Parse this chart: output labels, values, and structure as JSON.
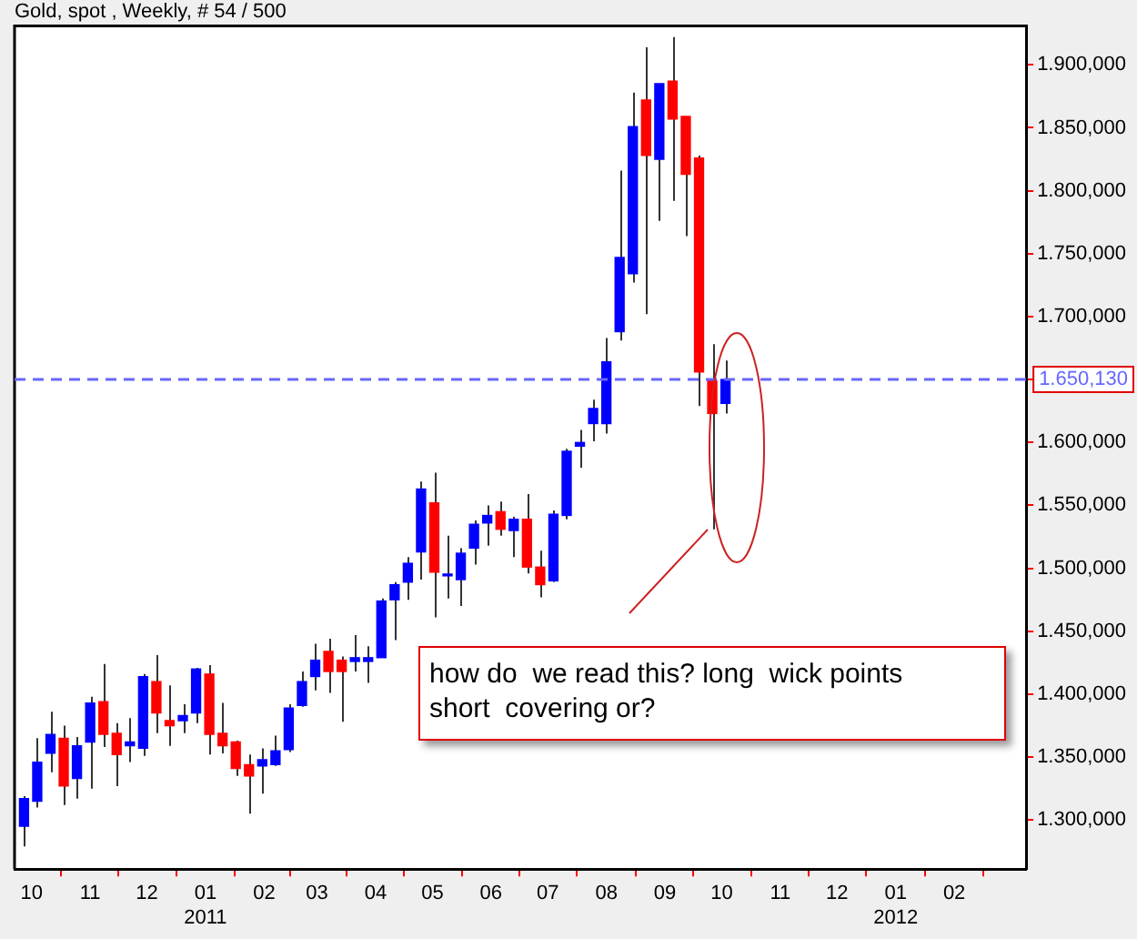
{
  "chart_data": {
    "type": "candlestick",
    "title": "Gold, spot , Weekly, # 54 / 500",
    "x": [
      "2010-09-27",
      "2010-10-04",
      "2010-10-11",
      "2010-10-18",
      "2010-10-25",
      "2010-11-01",
      "2010-11-08",
      "2010-11-15",
      "2010-11-22",
      "2010-11-29",
      "2010-12-06",
      "2010-12-13",
      "2010-12-20",
      "2010-12-27",
      "2011-01-03",
      "2011-01-10",
      "2011-01-17",
      "2011-01-24",
      "2011-01-31",
      "2011-02-07",
      "2011-02-14",
      "2011-02-21",
      "2011-02-28",
      "2011-03-07",
      "2011-03-14",
      "2011-03-21",
      "2011-03-28",
      "2011-04-04",
      "2011-04-11",
      "2011-04-18",
      "2011-04-25",
      "2011-05-02",
      "2011-05-09",
      "2011-05-16",
      "2011-05-23",
      "2011-05-30",
      "2011-06-06",
      "2011-06-13",
      "2011-06-20",
      "2011-06-27",
      "2011-07-04",
      "2011-07-11",
      "2011-07-18",
      "2011-07-25",
      "2011-08-01",
      "2011-08-08",
      "2011-08-15",
      "2011-08-22",
      "2011-08-29",
      "2011-09-05",
      "2011-09-12",
      "2011-09-19",
      "2011-09-26",
      "2011-10-03"
    ],
    "ohlc": [
      [
        1295,
        1319,
        1279,
        1317
      ],
      [
        1315,
        1365,
        1310,
        1346
      ],
      [
        1353,
        1386,
        1338,
        1368
      ],
      [
        1365,
        1375,
        1312,
        1327
      ],
      [
        1333,
        1366,
        1317,
        1359
      ],
      [
        1362,
        1398,
        1325,
        1393
      ],
      [
        1394,
        1424,
        1358,
        1368
      ],
      [
        1369,
        1377,
        1327,
        1352
      ],
      [
        1359,
        1381,
        1346,
        1362
      ],
      [
        1357,
        1416,
        1351,
        1414
      ],
      [
        1410,
        1431,
        1369,
        1385
      ],
      [
        1379,
        1407,
        1359,
        1375
      ],
      [
        1379,
        1392,
        1369,
        1383
      ],
      [
        1385,
        1421,
        1377,
        1420
      ],
      [
        1416,
        1423,
        1352,
        1368
      ],
      [
        1369,
        1393,
        1353,
        1359
      ],
      [
        1362,
        1363,
        1335,
        1341
      ],
      [
        1344,
        1352,
        1305,
        1335
      ],
      [
        1343,
        1357,
        1321,
        1348
      ],
      [
        1344,
        1367,
        1343,
        1355
      ],
      [
        1356,
        1392,
        1354,
        1389
      ],
      [
        1391,
        1418,
        1390,
        1410
      ],
      [
        1414,
        1440,
        1403,
        1427
      ],
      [
        1434,
        1444,
        1401,
        1418
      ],
      [
        1427,
        1430,
        1378,
        1418
      ],
      [
        1426,
        1447,
        1418,
        1429
      ],
      [
        1426,
        1438,
        1409,
        1429
      ],
      [
        1429,
        1476,
        1429,
        1474
      ],
      [
        1475,
        1489,
        1443,
        1487
      ],
      [
        1489,
        1509,
        1475,
        1504
      ],
      [
        1513,
        1569,
        1491,
        1563
      ],
      [
        1552,
        1576,
        1461,
        1497
      ],
      [
        1494,
        1526,
        1476,
        1495
      ],
      [
        1491,
        1516,
        1470,
        1512
      ],
      [
        1516,
        1538,
        1503,
        1535
      ],
      [
        1536,
        1550,
        1518,
        1542
      ],
      [
        1545,
        1553,
        1526,
        1531
      ],
      [
        1530,
        1541,
        1509,
        1539
      ],
      [
        1539,
        1559,
        1496,
        1501
      ],
      [
        1501,
        1514,
        1477,
        1487
      ],
      [
        1490,
        1546,
        1489,
        1543
      ],
      [
        1542,
        1595,
        1539,
        1593
      ],
      [
        1597,
        1610,
        1580,
        1600
      ],
      [
        1615,
        1634,
        1601,
        1627
      ],
      [
        1615,
        1683,
        1607,
        1664
      ],
      [
        1688,
        1816,
        1681,
        1747
      ],
      [
        1734,
        1878,
        1727,
        1851
      ],
      [
        1872,
        1914,
        1702,
        1828
      ],
      [
        1825,
        1885,
        1776,
        1885
      ],
      [
        1887,
        1922,
        1792,
        1857
      ],
      [
        1859,
        1859,
        1764,
        1813
      ],
      [
        1826,
        1828,
        1629,
        1656
      ],
      [
        1649,
        1678,
        1531,
        1623
      ],
      [
        1631,
        1665,
        1623,
        1650
      ]
    ],
    "colors": [
      "#0000ff",
      "#0000ff",
      "#0000ff",
      "#ff0000",
      "#0000ff",
      "#0000ff",
      "#ff0000",
      "#ff0000",
      "#0000ff",
      "#0000ff",
      "#ff0000",
      "#ff0000",
      "#0000ff",
      "#0000ff",
      "#ff0000",
      "#ff0000",
      "#ff0000",
      "#ff0000",
      "#0000ff",
      "#0000ff",
      "#0000ff",
      "#0000ff",
      "#0000ff",
      "#ff0000",
      "#ff0000",
      "#0000ff",
      "#0000ff",
      "#0000ff",
      "#0000ff",
      "#0000ff",
      "#0000ff",
      "#ff0000",
      "#0000ff",
      "#0000ff",
      "#0000ff",
      "#0000ff",
      "#ff0000",
      "#0000ff",
      "#ff0000",
      "#ff0000",
      "#0000ff",
      "#0000ff",
      "#0000ff",
      "#0000ff",
      "#0000ff",
      "#0000ff",
      "#0000ff",
      "#ff0000",
      "#0000ff",
      "#ff0000",
      "#ff0000",
      "#ff0000",
      "#ff0000",
      "#0000ff"
    ],
    "xlim": [
      "2010-09-22",
      "2012-03-10"
    ],
    "xticks": [
      {
        "value": "2010-10-01",
        "label": "10"
      },
      {
        "value": "2010-11-01",
        "label": "11"
      },
      {
        "value": "2010-12-01",
        "label": "12"
      },
      {
        "value": "2011-01-01",
        "label": "01\n2011"
      },
      {
        "value": "2011-02-01",
        "label": "02"
      },
      {
        "value": "2011-03-01",
        "label": "03"
      },
      {
        "value": "2011-04-01",
        "label": "04"
      },
      {
        "value": "2011-05-01",
        "label": "05"
      },
      {
        "value": "2011-06-01",
        "label": "06"
      },
      {
        "value": "2011-07-01",
        "label": "07"
      },
      {
        "value": "2011-08-01",
        "label": "08"
      },
      {
        "value": "2011-09-01",
        "label": "09"
      },
      {
        "value": "2011-10-01",
        "label": "10"
      },
      {
        "value": "2011-11-01",
        "label": "11"
      },
      {
        "value": "2011-12-01",
        "label": "12"
      },
      {
        "value": "2012-01-01",
        "label": "01\n2012"
      },
      {
        "value": "2012-02-01",
        "label": "02"
      }
    ],
    "ylim": [
      1261,
      1931
    ],
    "yticks": [
      {
        "value": 1300,
        "label": "1.300,000"
      },
      {
        "value": 1350,
        "label": "1.350,000"
      },
      {
        "value": 1400,
        "label": "1.400,000"
      },
      {
        "value": 1450,
        "label": "1.450,000"
      },
      {
        "value": 1500,
        "label": "1.500,000"
      },
      {
        "value": 1550,
        "label": "1.550,000"
      },
      {
        "value": 1600,
        "label": "1.600,000"
      },
      {
        "value": 1650,
        "label": null
      },
      {
        "value": 1700,
        "label": "1.700,000"
      },
      {
        "value": 1750,
        "label": "1.750,000"
      },
      {
        "value": 1800,
        "label": "1.800,000"
      },
      {
        "value": 1850,
        "label": "1.850,000"
      },
      {
        "value": 1900,
        "label": "1.900,000"
      }
    ],
    "ref_lines": [
      {
        "axis": "y",
        "value": 1650.13,
        "label": "1.650,130",
        "color": "#6666ff",
        "line_style": "dashed"
      }
    ],
    "annotations": [
      "how do  we read this? long  wick points short  covering or?"
    ],
    "grid": false,
    "legend": false
  }
}
